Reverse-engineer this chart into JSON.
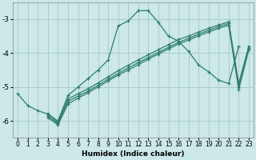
{
  "title": "",
  "xlabel": "Humidex (Indice chaleur)",
  "background_color": "#cce8e8",
  "grid_color": "#aacccc",
  "line_color": "#2e7d6e",
  "xlim": [
    -0.5,
    23.5
  ],
  "ylim": [
    -6.5,
    -2.5
  ],
  "yticks": [
    -6,
    -5,
    -4,
    -3
  ],
  "xticks": [
    0,
    1,
    2,
    3,
    4,
    5,
    6,
    7,
    8,
    9,
    10,
    11,
    12,
    13,
    14,
    15,
    16,
    17,
    18,
    19,
    20,
    21,
    22,
    23
  ],
  "lines": [
    {
      "x": [
        0,
        1,
        2,
        3,
        4,
        5,
        6,
        7,
        8,
        9,
        10,
        11,
        12,
        13,
        14,
        15,
        16,
        17,
        18,
        19,
        20,
        21,
        22
      ],
      "y": [
        -5.2,
        -5.55,
        -5.7,
        -5.8,
        -6.0,
        -5.25,
        -5.0,
        -4.75,
        -4.5,
        -4.2,
        -3.2,
        -3.05,
        -2.75,
        -2.75,
        -3.1,
        -3.5,
        -3.65,
        -3.95,
        -4.35,
        -4.55,
        -4.8,
        -4.9,
        -3.8
      ]
    },
    {
      "x": [
        3,
        4,
        5,
        6,
        7,
        8,
        9,
        10,
        11,
        12,
        13,
        14,
        15,
        16,
        17,
        18,
        19,
        20,
        21,
        22,
        23
      ],
      "y": [
        -5.78,
        -6.05,
        -5.35,
        -5.2,
        -5.05,
        -4.88,
        -4.7,
        -4.52,
        -4.36,
        -4.2,
        -4.05,
        -3.9,
        -3.75,
        -3.6,
        -3.5,
        -3.38,
        -3.27,
        -3.17,
        -3.08,
        -4.9,
        -3.8
      ]
    },
    {
      "x": [
        3,
        4,
        5,
        6,
        7,
        8,
        9,
        10,
        11,
        12,
        13,
        14,
        15,
        16,
        17,
        18,
        19,
        20,
        21,
        22,
        23
      ],
      "y": [
        -5.85,
        -6.08,
        -5.42,
        -5.27,
        -5.12,
        -4.95,
        -4.77,
        -4.6,
        -4.44,
        -4.28,
        -4.13,
        -3.98,
        -3.83,
        -3.68,
        -3.57,
        -3.44,
        -3.33,
        -3.22,
        -3.13,
        -5.0,
        -3.85
      ]
    },
    {
      "x": [
        3,
        4,
        5,
        6,
        7,
        8,
        9,
        10,
        11,
        12,
        13,
        14,
        15,
        16,
        17,
        18,
        19,
        20,
        21,
        22,
        23
      ],
      "y": [
        -5.9,
        -6.12,
        -5.5,
        -5.33,
        -5.17,
        -5.0,
        -4.82,
        -4.65,
        -4.5,
        -4.34,
        -4.18,
        -4.03,
        -3.88,
        -3.73,
        -3.62,
        -3.49,
        -3.38,
        -3.27,
        -3.18,
        -5.08,
        -3.9
      ]
    }
  ]
}
